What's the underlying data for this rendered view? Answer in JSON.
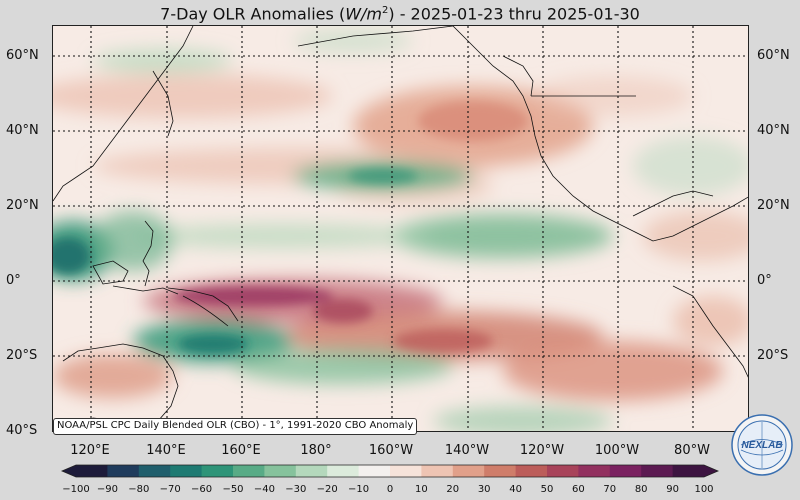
{
  "title": {
    "prefix": "7-Day OLR Anomalies (",
    "unit": "W/m",
    "unit_exp": "2",
    "suffix": ") - 2025-01-23 thru 2025-01-30"
  },
  "map": {
    "projection": "equirectangular",
    "lon_range": [
      "110°E",
      "70°W"
    ],
    "lat_range": [
      "40°S",
      "67°N"
    ],
    "grid": "dotted",
    "lat_labels": [
      "60°N",
      "40°N",
      "20°N",
      "0°",
      "20°S",
      "40°S"
    ],
    "lon_labels": [
      "120°E",
      "140°E",
      "160°E",
      "180°",
      "160°W",
      "140°W",
      "120°W",
      "100°W",
      "80°W"
    ]
  },
  "credit": "NOAA/PSL CPC Daily Blended OLR (CBO) - 1°, 1991-2020 CBO Anomaly",
  "colorbar": {
    "ticks": [
      "−100",
      "−90",
      "−80",
      "−70",
      "−60",
      "−50",
      "−40",
      "−30",
      "−20",
      "−10",
      "0",
      "10",
      "20",
      "30",
      "40",
      "50",
      "60",
      "70",
      "80",
      "90",
      "100"
    ],
    "range": [
      -100,
      100
    ],
    "extend": "both",
    "colors": [
      "#1d1b3a",
      "#1f3b5c",
      "#1f5e6c",
      "#1e7a72",
      "#2e9478",
      "#58ab86",
      "#86c29c",
      "#b4d8bc",
      "#dcebdc",
      "#f3f0ee",
      "#f6e3da",
      "#eec4b3",
      "#e1a08a",
      "#cf7d6a",
      "#bc5d5a",
      "#a8435a",
      "#92305f",
      "#7a2160",
      "#5c1a52",
      "#3d1441"
    ]
  },
  "logo": {
    "text": "NEXLAB"
  }
}
